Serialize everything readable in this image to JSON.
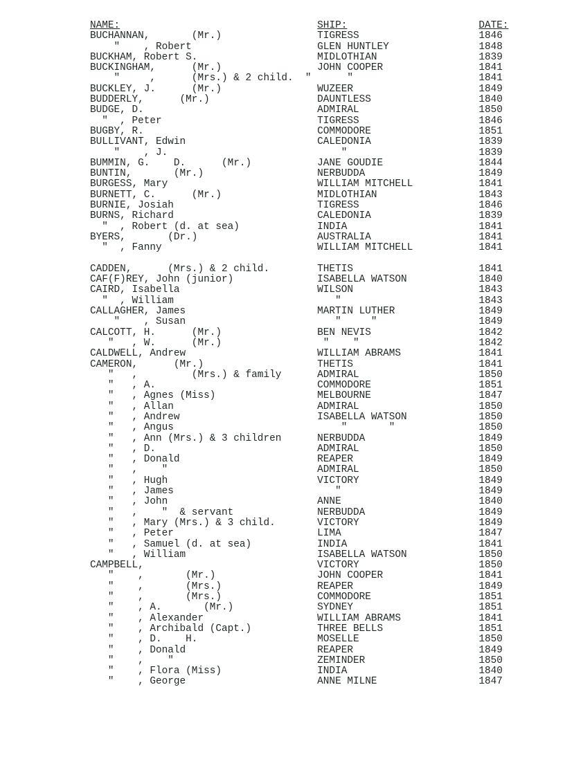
{
  "headers": {
    "name": "NAME:",
    "ship": "SHIP:",
    "date": "DATE:"
  },
  "layout": {
    "col_name": 0,
    "col_ship": 38,
    "col_date": 65
  },
  "rows": [
    {
      "name": "BUCHANNAN,       (Mr.)",
      "ship": "TIGRESS",
      "date": "1846"
    },
    {
      "name": "    \"    , Robert",
      "ship": "GLEN HUNTLEY",
      "date": "1848"
    },
    {
      "name": "BUCKHAM, Robert S.",
      "ship": "MIDLOTHIAN",
      "date": "1839"
    },
    {
      "name": "BUCKINGHAM,      (Mr.)",
      "ship": "JOHN COOPER",
      "date": "1841"
    },
    {
      "name": "    \"     ,      (Mrs.) & 2 child.  \"      \"",
      "ship": "",
      "date": "1841",
      "raw": true
    },
    {
      "name": "BUCKLEY, J.      (Mr.)",
      "ship": "WUZEER",
      "date": "1849"
    },
    {
      "name": "BUDDERLY,      (Mr.)",
      "ship": "DAUNTLESS",
      "date": "1840"
    },
    {
      "name": "BUDGE, D.",
      "ship": "ADMIRAL",
      "date": "1850"
    },
    {
      "name": "  \"  , Peter",
      "ship": "TIGRESS",
      "date": "1846"
    },
    {
      "name": "BUGBY, R.",
      "ship": "COMMODORE",
      "date": "1851"
    },
    {
      "name": "BULLIVANT, Edwin",
      "ship": "CALEDONIA",
      "date": "1839"
    },
    {
      "name": "    \"    , J.",
      "ship": "    \"",
      "date": "1839"
    },
    {
      "name": "BUMMIN, G.    D.      (Mr.)",
      "ship": "JANE GOUDIE",
      "date": "1844"
    },
    {
      "name": "BUNTIN,       (Mr.)",
      "ship": "NERBUDDA",
      "date": "1849"
    },
    {
      "name": "BURGESS, Mary",
      "ship": "WILLIAM MITCHELL",
      "date": "1841"
    },
    {
      "name": "BURNETT, C.      (Mr.)",
      "ship": "MIDLOTHIAN",
      "date": "1843"
    },
    {
      "name": "BURNIE, Josiah",
      "ship": "TIGRESS",
      "date": "1846"
    },
    {
      "name": "BURNS, Richard",
      "ship": "CALEDONIA",
      "date": "1839"
    },
    {
      "name": "  \"  , Robert (d. at sea)",
      "ship": "INDIA",
      "date": "1841"
    },
    {
      "name": "BYERS,       (Dr.)",
      "ship": "AUSTRALIA",
      "date": "1841"
    },
    {
      "name": "  \"  , Fanny",
      "ship": "WILLIAM MITCHELL",
      "date": "1841"
    },
    {
      "blank": true
    },
    {
      "name": "CADDEN,      (Mrs.) & 2 child.",
      "ship": "THETIS",
      "date": "1841"
    },
    {
      "name": "CAF(F)REY, John (junior)",
      "ship": "ISABELLA WATSON",
      "date": "1840"
    },
    {
      "name": "CAIRD, Isabella",
      "ship": "WILSON",
      "date": "1843"
    },
    {
      "name": "  \"  , William",
      "ship": "   \"",
      "date": "1843"
    },
    {
      "name": "CALLAGHER, James",
      "ship": "MARTIN LUTHER",
      "date": "1849"
    },
    {
      "name": "    \"    , Susan",
      "ship": "   \"     \"",
      "date": "1849"
    },
    {
      "name": "CALCOTT, H.      (Mr.)",
      "ship": "BEN NEVIS",
      "date": "1842"
    },
    {
      "name": "   \"   , W.      (Mr.)",
      "ship": " \"    \"",
      "date": "1842"
    },
    {
      "name": "CALDWELL, Andrew",
      "ship": "WILLIAM ABRAMS",
      "date": "1841"
    },
    {
      "name": "CAMERON,      (Mr.)",
      "ship": "THETIS",
      "date": "1841"
    },
    {
      "name": "   \"   ,         (Mrs.) & family",
      "ship": "ADMIRAL",
      "date": "1850"
    },
    {
      "name": "   \"   , A.",
      "ship": "COMMODORE",
      "date": "1851"
    },
    {
      "name": "   \"   , Agnes (Miss)",
      "ship": "MELBOURNE",
      "date": "1847"
    },
    {
      "name": "   \"   , Allan",
      "ship": "ADMIRAL",
      "date": "1850"
    },
    {
      "name": "   \"   , Andrew",
      "ship": "ISABELLA WATSON",
      "date": "1850"
    },
    {
      "name": "   \"   , Angus",
      "ship": "    \"       \"",
      "date": "1850"
    },
    {
      "name": "   \"   , Ann (Mrs.) & 3 children",
      "ship": "NERBUDDA",
      "date": "1849"
    },
    {
      "name": "   \"   , D.",
      "ship": "ADMIRAL",
      "date": "1850"
    },
    {
      "name": "   \"   , Donald",
      "ship": "REAPER",
      "date": "1849"
    },
    {
      "name": "   \"   ,    \"",
      "ship": "ADMIRAL",
      "date": "1850"
    },
    {
      "name": "   \"   , Hugh",
      "ship": "VICTORY",
      "date": "1849"
    },
    {
      "name": "   \"   , James",
      "ship": "   \"",
      "date": "1849"
    },
    {
      "name": "   \"   , John",
      "ship": "ANNE",
      "date": "1840"
    },
    {
      "name": "   \"   ,    \"  & servant",
      "ship": "NERBUDDA",
      "date": "1849"
    },
    {
      "name": "   \"   , Mary (Mrs.) & 3 child.",
      "ship": "VICTORY",
      "date": "1849"
    },
    {
      "name": "   \"   , Peter",
      "ship": "LIMA",
      "date": "1847"
    },
    {
      "name": "   \"   , Samuel (d. at sea)",
      "ship": "INDIA",
      "date": "1841"
    },
    {
      "name": "   \"   , William",
      "ship": "ISABELLA WATSON",
      "date": "1850"
    },
    {
      "name": "CAMPBELL,",
      "ship": "VICTORY",
      "date": "1850"
    },
    {
      "name": "   \"    ,       (Mr.)",
      "ship": "JOHN COOPER",
      "date": "1841"
    },
    {
      "name": "   \"    ,       (Mrs.)",
      "ship": "REAPER",
      "date": "1849"
    },
    {
      "name": "   \"    ,       (Mrs.)",
      "ship": "COMMODORE",
      "date": "1851"
    },
    {
      "name": "   \"    , A.       (Mr.)",
      "ship": "SYDNEY",
      "date": "1851"
    },
    {
      "name": "   \"    , Alexander",
      "ship": "WILLIAM ABRAMS",
      "date": "1841"
    },
    {
      "name": "   \"    , Archibald (Capt.)",
      "ship": "THREE BELLS",
      "date": "1851"
    },
    {
      "name": "   \"    , D.    H.",
      "ship": "MOSELLE",
      "date": "1850"
    },
    {
      "name": "   \"    , Donald",
      "ship": "REAPER",
      "date": "1849"
    },
    {
      "name": "   \"    ,    \"",
      "ship": "ZEMINDER",
      "date": "1850"
    },
    {
      "name": "   \"    , Flora (Miss)",
      "ship": "INDIA",
      "date": "1840"
    },
    {
      "name": "   \"    , George",
      "ship": "ANNE MILNE",
      "date": "1847"
    }
  ]
}
